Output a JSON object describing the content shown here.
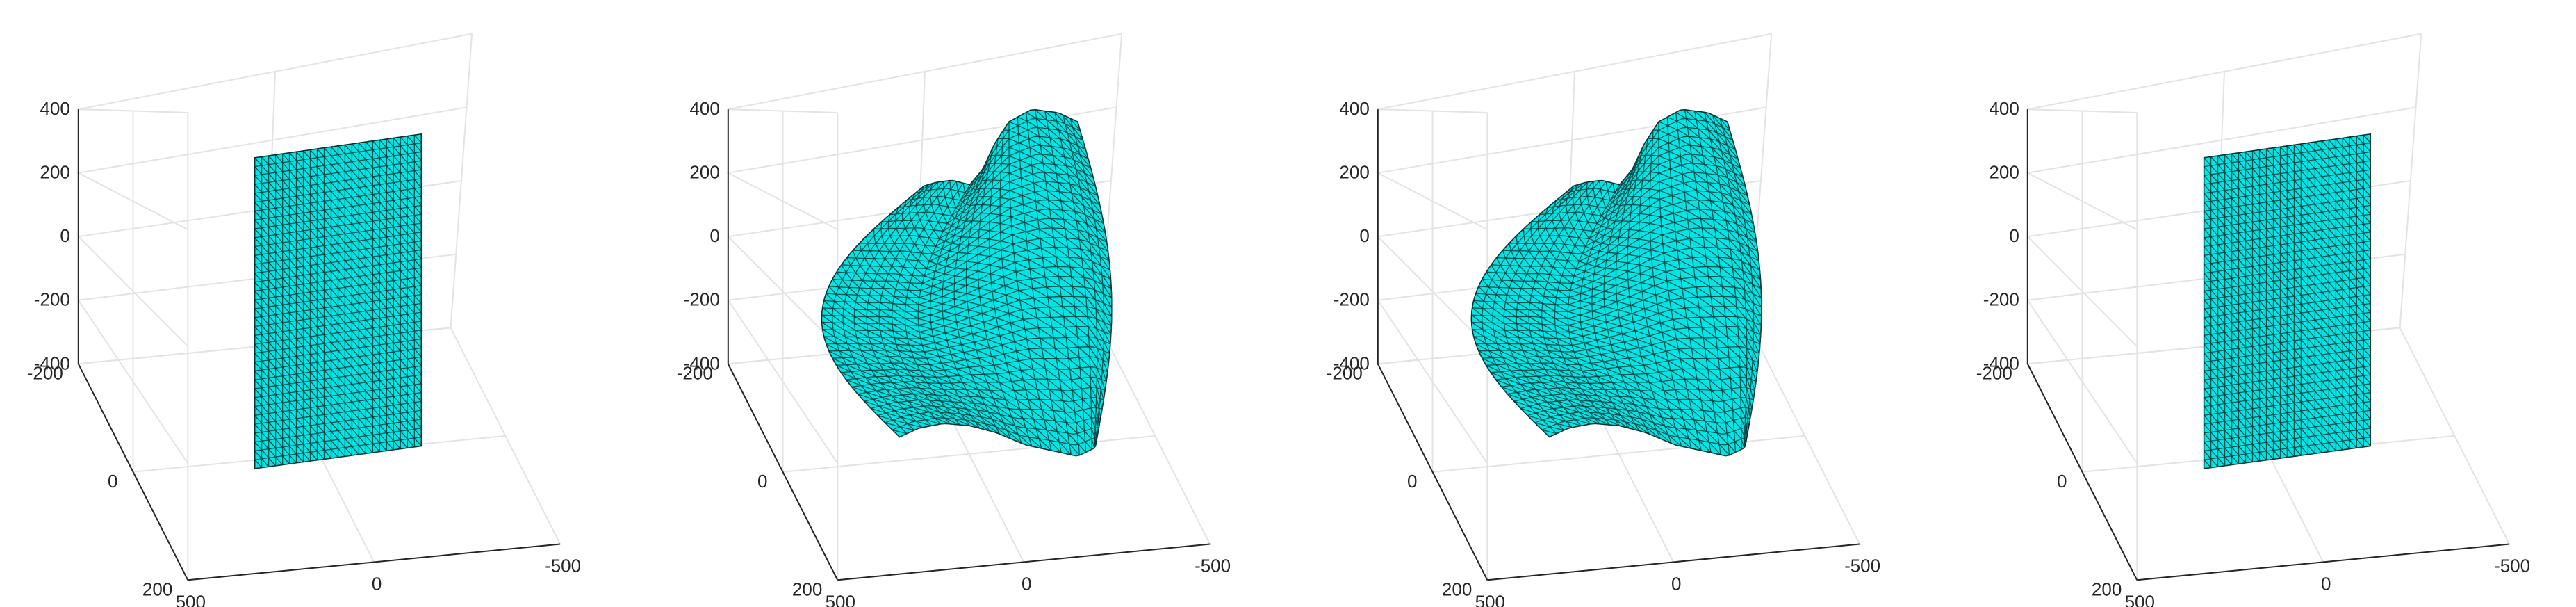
{
  "figure": {
    "panel_count": 4
  },
  "chart_data": [
    {
      "type": "surface3d",
      "title": "",
      "xlabel": "",
      "ylabel": "",
      "zlabel": "",
      "xlim": [
        -500,
        500
      ],
      "ylim": [
        -200,
        200
      ],
      "zlim": [
        -400,
        400
      ],
      "x_ticks": [
        "500",
        "0",
        "-500"
      ],
      "y_ticks": [
        "-200",
        "0",
        "200"
      ],
      "z_ticks": [
        "400",
        "200",
        "0",
        "-200",
        "-400"
      ],
      "surface": "flat-plane",
      "face_color": "#00e5e5",
      "edge_color": "#1a1a1a",
      "grid": true
    },
    {
      "type": "surface3d",
      "title": "",
      "xlabel": "",
      "ylabel": "",
      "zlabel": "",
      "xlim": [
        -500,
        500
      ],
      "ylim": [
        -200,
        200
      ],
      "zlim": [
        -400,
        400
      ],
      "x_ticks": [
        "500",
        "0",
        "-500"
      ],
      "y_ticks": [
        "-200",
        "0",
        "200"
      ],
      "z_ticks": [
        "400",
        "200",
        "0",
        "-200",
        "-400"
      ],
      "surface": "deformed-sheet",
      "face_color": "#00e5e5",
      "edge_color": "#1a1a1a",
      "grid": true
    },
    {
      "type": "surface3d",
      "title": "",
      "xlabel": "",
      "ylabel": "",
      "zlabel": "",
      "xlim": [
        -500,
        500
      ],
      "ylim": [
        -200,
        200
      ],
      "zlim": [
        -400,
        400
      ],
      "x_ticks": [
        "500",
        "0",
        "-500"
      ],
      "y_ticks": [
        "-200",
        "0",
        "200"
      ],
      "z_ticks": [
        "400",
        "200",
        "0",
        "-200",
        "-400"
      ],
      "surface": "deformed-sheet",
      "face_color": "#00e5e5",
      "edge_color": "#1a1a1a",
      "grid": true
    },
    {
      "type": "surface3d",
      "title": "",
      "xlabel": "",
      "ylabel": "",
      "zlabel": "",
      "xlim": [
        -500,
        500
      ],
      "ylim": [
        -200,
        200
      ],
      "zlim": [
        -400,
        400
      ],
      "x_ticks": [
        "500",
        "0",
        "-500"
      ],
      "y_ticks": [
        "-200",
        "0",
        "200"
      ],
      "z_ticks": [
        "400",
        "200",
        "0",
        "-200",
        "-400"
      ],
      "surface": "flat-plane",
      "face_color": "#00e5e5",
      "edge_color": "#1a1a1a",
      "grid": true
    }
  ]
}
